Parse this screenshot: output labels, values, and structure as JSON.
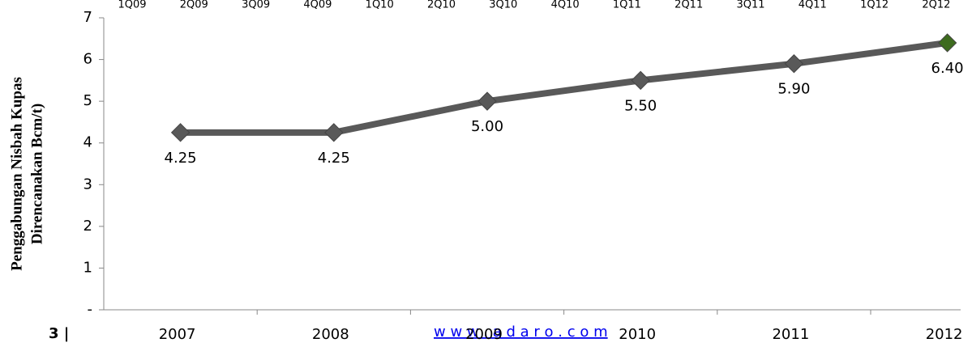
{
  "chart_data": {
    "type": "line",
    "ylabel": [
      "Penggabungan Nisbah Kupas",
      "Direncanakan Bcm/t)"
    ],
    "categories": [
      "2007",
      "2008",
      "2009",
      "2010",
      "2011",
      "2012"
    ],
    "top_categories": [
      "1Q09",
      "2Q09",
      "3Q09",
      "4Q09",
      "1Q10",
      "2Q10",
      "3Q10",
      "4Q10",
      "1Q11",
      "2Q11",
      "3Q11",
      "4Q11",
      "1Q12",
      "2Q12"
    ],
    "series": [
      {
        "name": "Nisbah Kupas",
        "color": "#595959",
        "highlight_color": "#3d6b1e",
        "values": [
          4.25,
          4.25,
          5.0,
          5.5,
          5.9,
          6.4
        ],
        "value_labels": [
          "4.25",
          "4.25",
          "5.00",
          "5.50",
          "5.90",
          "6.40"
        ]
      }
    ],
    "ylim": [
      0,
      7
    ],
    "yticks": [
      {
        "value": 0,
        "label": "-"
      },
      1,
      2,
      3,
      4,
      5,
      6,
      7
    ]
  },
  "footer": {
    "page": "3 |",
    "link": "w w w . a d a r o . c o m"
  }
}
